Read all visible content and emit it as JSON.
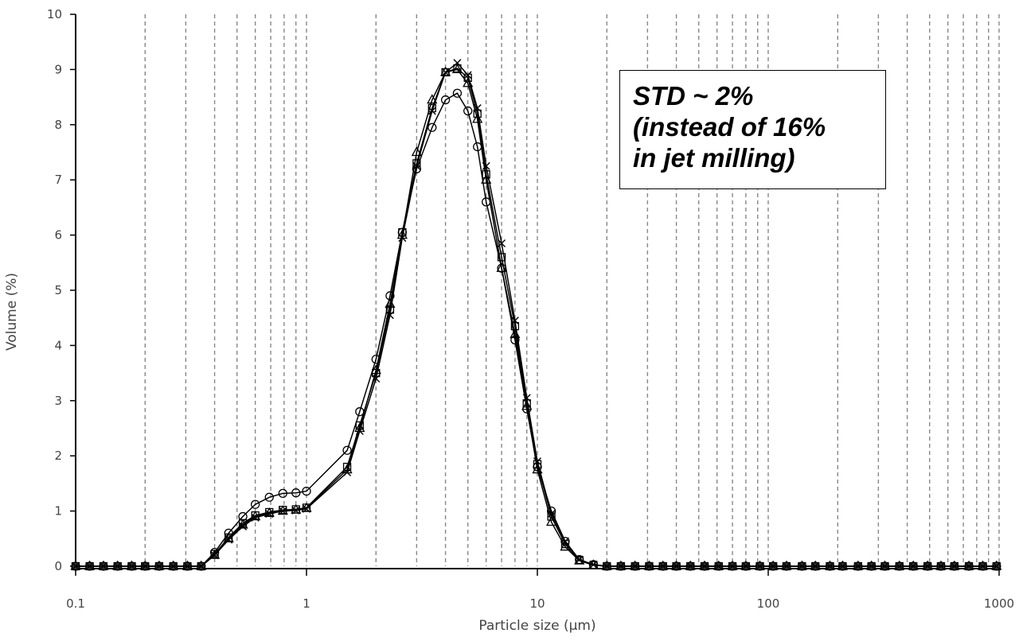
{
  "chart_data": {
    "type": "line",
    "xlabel": "Particle size (µm)",
    "ylabel": "Volume (%)",
    "xscale": "log",
    "xlim": [
      0.1,
      1000
    ],
    "ylim": [
      0,
      10
    ],
    "x_ticks": [
      0.1,
      1,
      10,
      100,
      1000
    ],
    "x_tick_labels": [
      "0.1",
      "1",
      "10",
      "100",
      "1000"
    ],
    "y_ticks": [
      0,
      1,
      2,
      3,
      4,
      5,
      6,
      7,
      8,
      9,
      10
    ],
    "grid": "vertical dashed at log minor ticks",
    "annotation": [
      "STD ~ 2%",
      "(instead of 16%",
      "in jet milling)"
    ],
    "x": [
      0.1,
      0.115,
      0.132,
      0.152,
      0.175,
      0.2,
      0.23,
      0.265,
      0.305,
      0.35,
      0.4,
      0.46,
      0.53,
      0.6,
      0.69,
      0.79,
      0.9,
      1.0,
      1.5,
      1.7,
      2.0,
      2.3,
      2.6,
      3.0,
      3.5,
      4.0,
      4.5,
      5.0,
      5.5,
      6.0,
      7.0,
      8.0,
      9.0,
      10.0,
      11.5,
      13.2,
      15.2,
      17.5,
      20,
      23,
      26.5,
      30.5,
      35,
      40,
      46,
      53,
      61,
      70,
      80,
      92,
      105,
      120,
      140,
      160,
      185,
      210,
      245,
      280,
      320,
      370,
      425,
      490,
      560,
      640,
      740,
      850,
      975
    ],
    "series": [
      {
        "marker": "circle",
        "values": [
          0,
          0,
          0,
          0,
          0,
          0,
          0,
          0,
          0,
          0,
          0.25,
          0.6,
          0.9,
          1.12,
          1.25,
          1.32,
          1.33,
          1.36,
          2.1,
          2.8,
          3.75,
          4.9,
          6.05,
          7.2,
          7.95,
          8.45,
          8.57,
          8.25,
          7.6,
          6.6,
          5.4,
          4.1,
          2.85,
          1.8,
          1.0,
          0.45,
          0.12,
          0.03,
          0,
          0,
          0,
          0,
          0,
          0,
          0,
          0,
          0,
          0,
          0,
          0,
          0,
          0,
          0,
          0,
          0,
          0,
          0,
          0,
          0,
          0,
          0,
          0,
          0,
          0,
          0,
          0,
          0
        ]
      },
      {
        "marker": "triangle",
        "values": [
          0,
          0,
          0,
          0,
          0,
          0,
          0,
          0,
          0,
          0,
          0.2,
          0.5,
          0.75,
          0.9,
          0.96,
          1.0,
          1.02,
          1.05,
          1.75,
          2.5,
          3.55,
          4.75,
          6.0,
          7.5,
          8.45,
          8.95,
          9.0,
          8.75,
          8.1,
          7.0,
          5.4,
          4.2,
          2.9,
          1.75,
          0.8,
          0.35,
          0.1,
          0.02,
          0,
          0,
          0,
          0,
          0,
          0,
          0,
          0,
          0,
          0,
          0,
          0,
          0,
          0,
          0,
          0,
          0,
          0,
          0,
          0,
          0,
          0,
          0,
          0,
          0,
          0,
          0,
          0,
          0
        ]
      },
      {
        "marker": "square",
        "values": [
          0,
          0,
          0,
          0,
          0,
          0,
          0,
          0,
          0,
          0,
          0.22,
          0.52,
          0.78,
          0.92,
          0.98,
          1.02,
          1.03,
          1.06,
          1.8,
          2.55,
          3.5,
          4.65,
          6.05,
          7.3,
          8.3,
          8.95,
          9.02,
          8.85,
          8.2,
          7.1,
          5.6,
          4.35,
          2.95,
          1.85,
          0.9,
          0.4,
          0.11,
          0.02,
          0,
          0,
          0,
          0,
          0,
          0,
          0,
          0,
          0,
          0,
          0,
          0,
          0,
          0,
          0,
          0,
          0,
          0,
          0,
          0,
          0,
          0,
          0,
          0,
          0,
          0,
          0,
          0,
          0
        ]
      },
      {
        "marker": "cross",
        "values": [
          0,
          0,
          0,
          0,
          0,
          0,
          0,
          0,
          0,
          0,
          0.2,
          0.48,
          0.72,
          0.88,
          0.95,
          1.0,
          1.01,
          1.04,
          1.7,
          2.45,
          3.4,
          4.55,
          5.95,
          7.25,
          8.25,
          8.95,
          9.12,
          8.9,
          8.3,
          7.25,
          5.85,
          4.45,
          3.05,
          1.9,
          0.95,
          0.45,
          0.12,
          0.03,
          0,
          0,
          0,
          0,
          0,
          0,
          0,
          0,
          0,
          0,
          0,
          0,
          0,
          0,
          0,
          0,
          0,
          0,
          0,
          0,
          0,
          0,
          0,
          0,
          0,
          0,
          0,
          0,
          0
        ]
      }
    ]
  }
}
